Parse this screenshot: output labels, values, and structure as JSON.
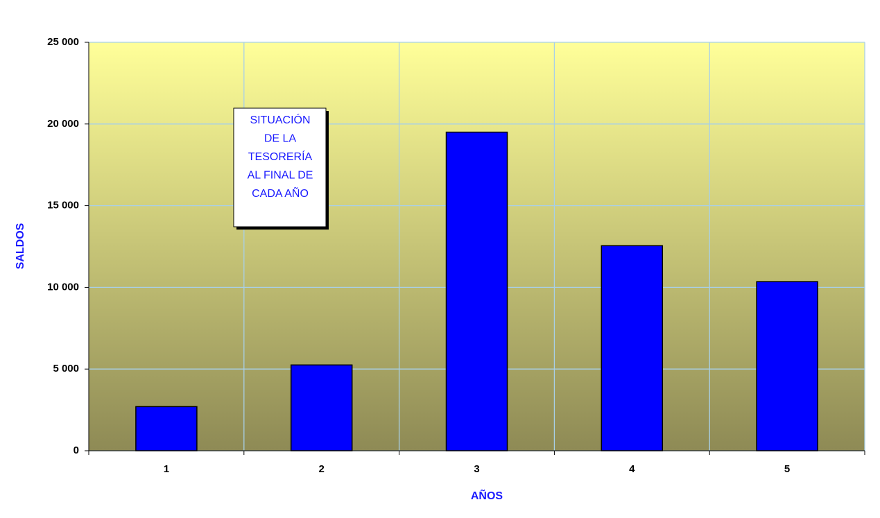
{
  "chart_data": {
    "type": "bar",
    "categories": [
      "1",
      "2",
      "3",
      "4",
      "5"
    ],
    "values": [
      2700,
      5250,
      19500,
      12550,
      10350
    ],
    "color": "#0000ff",
    "xlabel": "AÑOS",
    "ylabel": "SALDOS",
    "ylim": [
      0,
      25000
    ],
    "yticks": [
      0,
      {
        "value": 5000,
        "label": "5 000"
      },
      {
        "value": 10000,
        "label": "10 000"
      },
      {
        "value": 15000,
        "label": "15 000"
      },
      {
        "value": 20000,
        "label": "20 000"
      },
      {
        "value": 25000,
        "label": "25 000"
      }
    ],
    "grid": true,
    "annotation": [
      "SITUACIÓN",
      "DE LA",
      "TESORERÍA",
      "AL FINAL DE",
      "CADA AÑO"
    ]
  }
}
